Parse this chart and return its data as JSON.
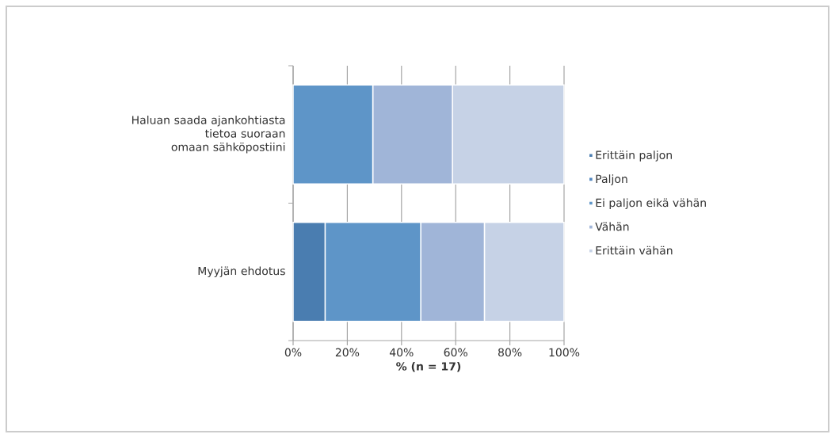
{
  "chart_data": {
    "type": "bar",
    "orientation": "horizontal",
    "stacked": true,
    "categories": [
      "Haluan saada ajankohtiasta tietoa suoraan omaan sähköpostiini",
      "Myyjän ehdotus"
    ],
    "series": [
      {
        "name": "Erittäin paljon",
        "color": "#4a7db0",
        "values": [
          0,
          11.8
        ]
      },
      {
        "name": "Paljon",
        "color": "#5287c0",
        "values": [
          0,
          0
        ]
      },
      {
        "name": "Ei paljon eikä vähän",
        "color": "#5e95c8",
        "values": [
          29.4,
          35.3
        ]
      },
      {
        "name": "Vähän",
        "color": "#a0b5d8",
        "values": [
          29.4,
          23.5
        ]
      },
      {
        "name": "Erittäin vähän",
        "color": "#c6d2e6",
        "values": [
          41.2,
          29.4
        ]
      }
    ],
    "xlabel": "% (n = 17)",
    "xlim": [
      0,
      100
    ],
    "xticks": [
      {
        "value": 0,
        "label": "0%"
      },
      {
        "value": 20,
        "label": "20%"
      },
      {
        "value": 40,
        "label": "40%"
      },
      {
        "value": 60,
        "label": "60%"
      },
      {
        "value": 80,
        "label": "80%"
      },
      {
        "value": 100,
        "label": "100%"
      }
    ],
    "grid": "x",
    "legend": "right"
  }
}
